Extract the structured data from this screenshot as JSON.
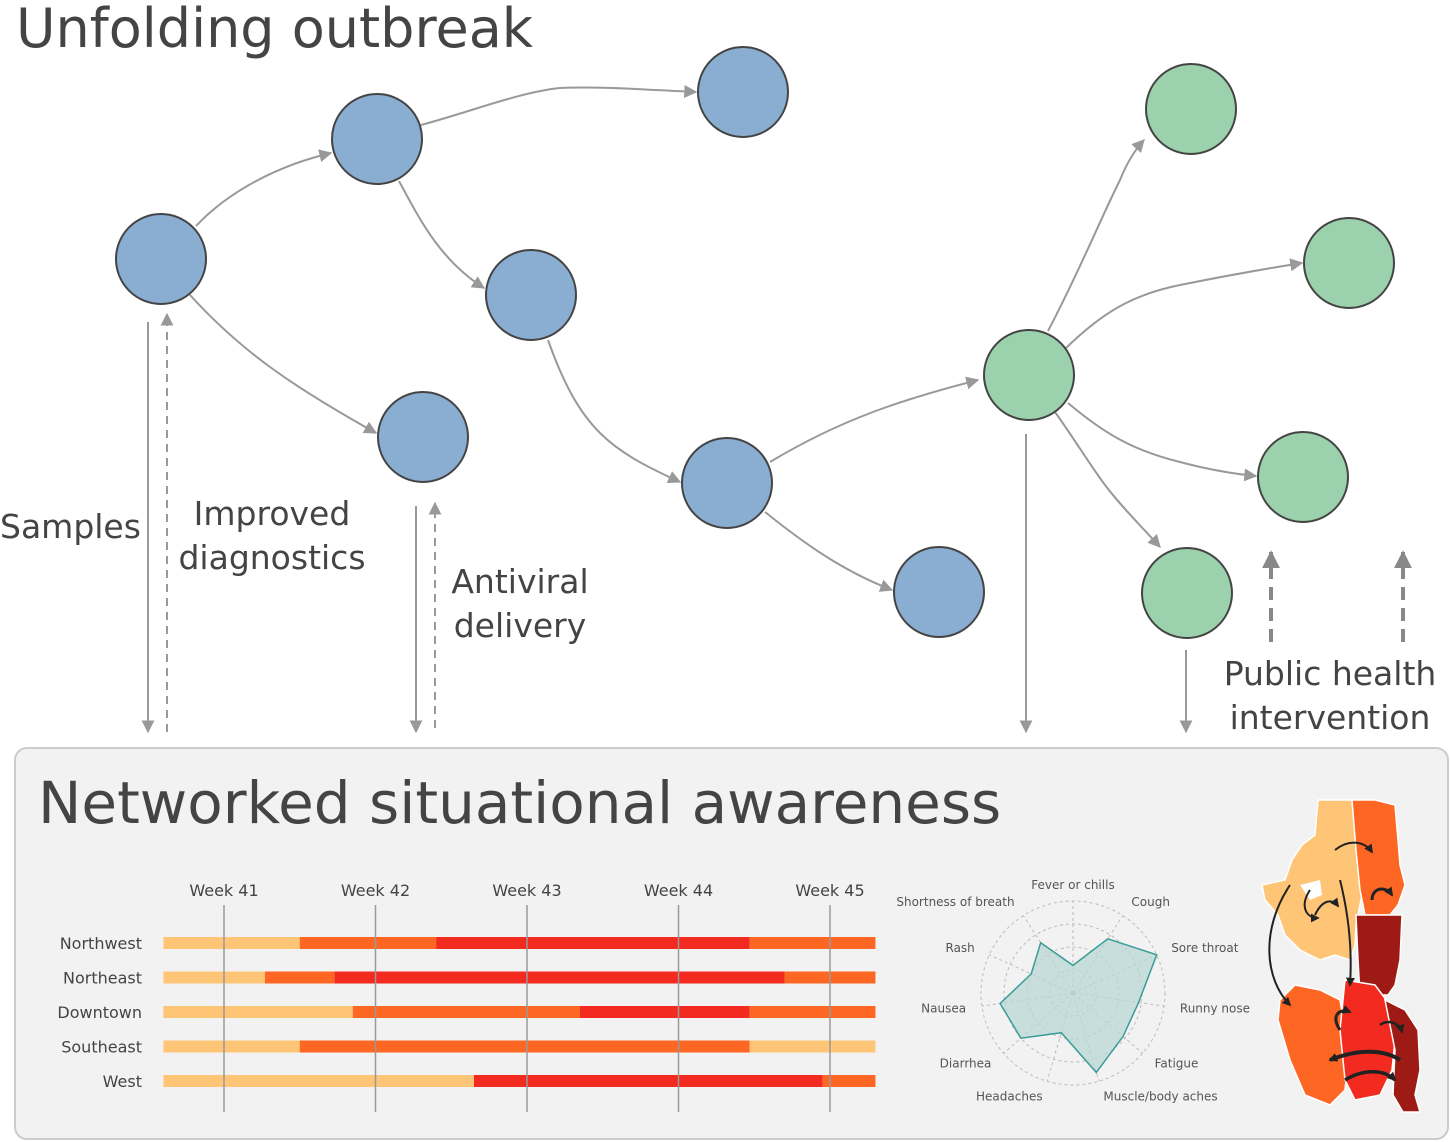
{
  "title": "Unfolding outbreak",
  "labels": {
    "samples": "Samples",
    "improved_line1": "Improved",
    "improved_line2": "diagnostics",
    "antiviral_line1": "Antiviral",
    "antiviral_line2": "delivery",
    "public_line1": "Public health",
    "public_line2": "intervention"
  },
  "panel": {
    "title": "Networked situational awareness"
  },
  "colors": {
    "blue_node": "#8aaed1",
    "green_node": "#9bd1ac",
    "node_stroke": "#444444",
    "edge": "#999999",
    "panel_bg": "#f2f2f2",
    "panel_border": "#cccccc",
    "level1": "#fec576",
    "level2": "#fd6623",
    "level3": "#f22a1f",
    "radar_fill": "#b9d7d4",
    "radar_stroke": "#3a9c98"
  },
  "timeline": {
    "weeks": [
      "Week 41",
      "Week 42",
      "Week 43",
      "Week 44",
      "Week 45"
    ],
    "rows": [
      {
        "name": "Northwest",
        "segments": [
          {
            "start": 40.6,
            "end": 41.5,
            "level": 1
          },
          {
            "start": 41.5,
            "end": 42.4,
            "level": 2
          },
          {
            "start": 42.4,
            "end": 44.47,
            "level": 3
          },
          {
            "start": 44.47,
            "end": 45.3,
            "level": 2
          }
        ]
      },
      {
        "name": "Northeast",
        "segments": [
          {
            "start": 40.6,
            "end": 41.27,
            "level": 1
          },
          {
            "start": 41.27,
            "end": 41.73,
            "level": 2
          },
          {
            "start": 41.73,
            "end": 44.7,
            "level": 3
          },
          {
            "start": 44.7,
            "end": 45.3,
            "level": 2
          }
        ]
      },
      {
        "name": "Downtown",
        "segments": [
          {
            "start": 40.6,
            "end": 41.85,
            "level": 1
          },
          {
            "start": 41.85,
            "end": 43.35,
            "level": 2
          },
          {
            "start": 43.35,
            "end": 44.47,
            "level": 3
          },
          {
            "start": 44.47,
            "end": 45.3,
            "level": 2
          }
        ]
      },
      {
        "name": "Southeast",
        "segments": [
          {
            "start": 40.6,
            "end": 41.5,
            "level": 1
          },
          {
            "start": 41.5,
            "end": 44.47,
            "level": 2
          },
          {
            "start": 44.47,
            "end": 45.3,
            "level": 1
          }
        ]
      },
      {
        "name": "West",
        "segments": [
          {
            "start": 40.6,
            "end": 42.65,
            "level": 1
          },
          {
            "start": 42.65,
            "end": 44.95,
            "level": 3
          },
          {
            "start": 44.95,
            "end": 45.3,
            "level": 2
          }
        ]
      }
    ]
  },
  "radar": {
    "axes": [
      "Fever or chills",
      "Cough",
      "Sore throat",
      "Runny nose",
      "Fatigue",
      "Muscle/body aches",
      "Headaches",
      "Diarrhea",
      "Nausea",
      "Rash",
      "Shortness of breath"
    ],
    "values": [
      0.3,
      0.7,
      1.0,
      0.72,
      0.72,
      0.9,
      0.45,
      0.75,
      0.8,
      0.5,
      0.65
    ]
  },
  "network": {
    "nodes": [
      {
        "id": "n1",
        "group": "blue"
      },
      {
        "id": "n2",
        "group": "blue"
      },
      {
        "id": "n3",
        "group": "blue"
      },
      {
        "id": "n4",
        "group": "blue"
      },
      {
        "id": "n5",
        "group": "blue"
      },
      {
        "id": "n6",
        "group": "blue"
      },
      {
        "id": "n7",
        "group": "blue"
      },
      {
        "id": "n8",
        "group": "green"
      },
      {
        "id": "n9",
        "group": "green"
      },
      {
        "id": "n10",
        "group": "green"
      },
      {
        "id": "n11",
        "group": "green"
      },
      {
        "id": "n12",
        "group": "green"
      }
    ]
  }
}
